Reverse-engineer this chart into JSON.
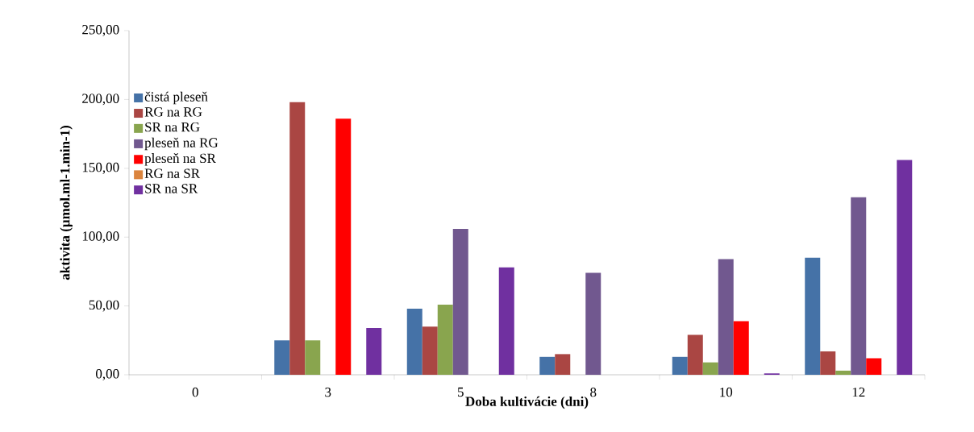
{
  "chart_data": {
    "type": "bar",
    "xlabel": "Doba kultivácie (dni)",
    "ylabel": "aktivita (µmol.ml-1.min-1)",
    "categories": [
      "0",
      "3",
      "5",
      "8",
      "10",
      "12"
    ],
    "series": [
      {
        "name": "čistá pleseň",
        "color": "#4572a7",
        "values": [
          0,
          25,
          48,
          13,
          13,
          85
        ]
      },
      {
        "name": "RG na RG",
        "color": "#aa4643",
        "values": [
          0,
          198,
          35,
          15,
          29,
          17
        ]
      },
      {
        "name": "SR na RG",
        "color": "#89a54e",
        "values": [
          0,
          25,
          51,
          0,
          9,
          3
        ]
      },
      {
        "name": "pleseň na RG",
        "color": "#71588f",
        "values": [
          0,
          0,
          106,
          74,
          84,
          129
        ]
      },
      {
        "name": "pleseň na SR",
        "color": "#ff0000",
        "values": [
          0,
          186,
          0,
          0,
          39,
          12
        ]
      },
      {
        "name": "RG na SR",
        "color": "#db843d",
        "values": [
          0,
          0,
          0,
          0,
          0,
          0
        ]
      },
      {
        "name": "SR na SR",
        "color": "#7030a0",
        "values": [
          0,
          34,
          78,
          0,
          1,
          156
        ]
      }
    ],
    "ylim": [
      0,
      250
    ],
    "yticks": [
      {
        "value": 0,
        "label": "0,00"
      },
      {
        "value": 50,
        "label": "50,00"
      },
      {
        "value": 100,
        "label": "100,00"
      },
      {
        "value": 150,
        "label": "150,00"
      },
      {
        "value": 200,
        "label": "200,00"
      },
      {
        "value": 250,
        "label": "250,00"
      }
    ],
    "grid": false,
    "legend": "left"
  }
}
